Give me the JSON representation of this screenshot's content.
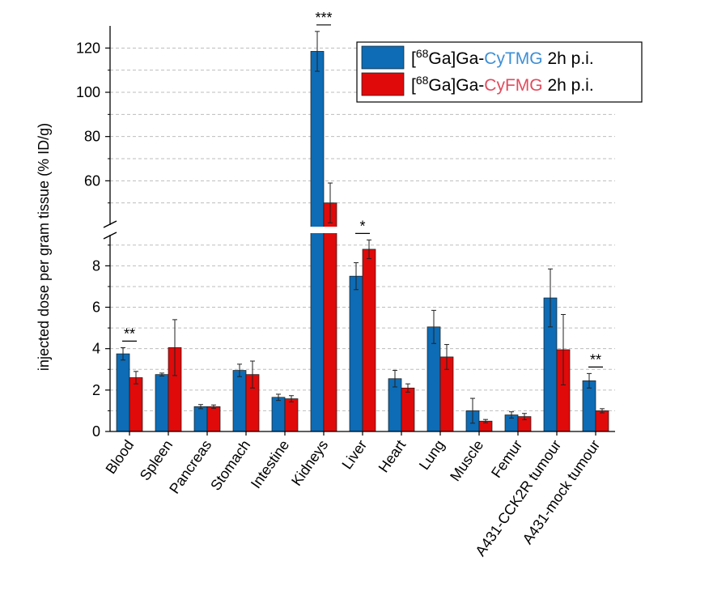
{
  "chart_data": {
    "type": "bar",
    "ylabel": "injected dose per gram tissue (% ID/g)",
    "categories": [
      "Blood",
      "Spleen",
      "Pancreas",
      "Stomach",
      "Intestine",
      "Kidneys",
      "Liver",
      "Heart",
      "Lung",
      "Muscle",
      "Femur",
      "A431-CCK2R tumour",
      "A431-mock tumour"
    ],
    "axis_break": true,
    "lower_ylim": [
      0,
      9.5
    ],
    "lower_ticks": [
      "0",
      "2",
      "4",
      "6",
      "8"
    ],
    "upper_ylim": [
      40,
      130
    ],
    "upper_ticks": [
      "60",
      "80",
      "100",
      "120"
    ],
    "grid": true,
    "legend_position": "top-right",
    "series": [
      {
        "name": "[68Ga]Ga-CyTMG 2h p.i.",
        "legend_prefix": "[",
        "legend_sup": "68",
        "legend_mid": "Ga]Ga-",
        "legend_highlight": "CyTMG",
        "legend_suffix": " 2h p.i.",
        "color": "#0d6cb5",
        "highlight_color": "#3d8fd6",
        "values": [
          3.75,
          2.75,
          1.2,
          2.95,
          1.65,
          118.5,
          7.5,
          2.55,
          5.05,
          1.0,
          0.8,
          6.45,
          2.45
        ],
        "errors": [
          0.3,
          0.07,
          0.1,
          0.3,
          0.15,
          9.0,
          0.65,
          0.4,
          0.8,
          0.6,
          0.15,
          1.4,
          0.35
        ]
      },
      {
        "name": "[68Ga]Ga-CyFMG 2h p.i.",
        "legend_prefix": "[",
        "legend_sup": "68",
        "legend_mid": "Ga]Ga-",
        "legend_highlight": "CyFMG",
        "legend_suffix": " 2h p.i.",
        "color": "#e00a0a",
        "highlight_color": "#e14b5e",
        "values": [
          2.6,
          4.05,
          1.2,
          2.75,
          1.58,
          50.0,
          8.8,
          2.1,
          3.6,
          0.5,
          0.72,
          3.95,
          1.0
        ],
        "errors": [
          0.3,
          1.35,
          0.08,
          0.65,
          0.15,
          9.0,
          0.45,
          0.2,
          0.6,
          0.08,
          0.15,
          1.7,
          0.1
        ]
      }
    ],
    "significance": [
      {
        "category": "Blood",
        "label": "**"
      },
      {
        "category": "Kidneys",
        "label": "***"
      },
      {
        "category": "Liver",
        "label": "*"
      },
      {
        "category": "A431-mock tumour",
        "label": "**"
      }
    ]
  }
}
